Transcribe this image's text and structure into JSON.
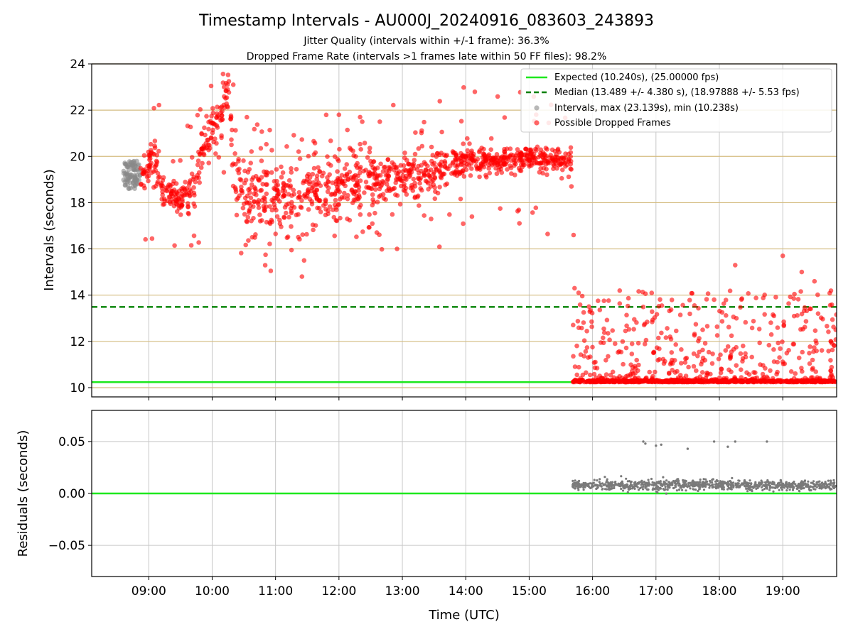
{
  "chart_data": {
    "type": "scatter",
    "title": "Timestamp Intervals - AU000J_20240916_083603_243893",
    "subtitle_lines": [
      "Jitter Quality (intervals within +/-1 frame): 36.3%",
      "Dropped Frame Rate (intervals >1 frames late within 50 FF files): 98.2%"
    ],
    "xlabel": "Time (UTC)",
    "x_ticks": [
      "09:00",
      "10:00",
      "11:00",
      "12:00",
      "13:00",
      "14:00",
      "15:00",
      "16:00",
      "17:00",
      "18:00",
      "19:00"
    ],
    "x_range": [
      "08:06",
      "19:51"
    ],
    "grid": true,
    "legend_position": "top-right",
    "colors": {
      "expected": "#1ee81e",
      "median": "#008000",
      "intervals": "#888888",
      "dropped": "#ff0000",
      "residuals": "#7a7a7a",
      "hgrid_top": "#d4bc80",
      "grid": "#c8c8c8"
    },
    "top": {
      "ylabel": "Intervals (seconds)",
      "ylim": [
        9.6,
        24
      ],
      "y_ticks": [
        10,
        12,
        14,
        16,
        18,
        20,
        22,
        24
      ],
      "expected_value": 10.24,
      "expected_start": "08:06",
      "expected_end": "15:41",
      "median_value": 13.489,
      "legend": [
        "Expected (10.240s), (25.00000 fps)",
        "Median (13.489 +/- 4.380 s), (18.97888 +/- 5.53 fps)",
        "Intervals, max (23.139s), min (10.238s)",
        "Possible Dropped Frames"
      ],
      "intervals_gray": [
        {
          "from": "08:36",
          "to": "08:52",
          "min": 18.6,
          "max": 19.8
        }
      ],
      "dropped_trend": [
        {
          "x": "08:52",
          "y": 19.2,
          "s": 0.4
        },
        {
          "x": "09:05",
          "y": 19.8,
          "s": 0.5
        },
        {
          "x": "09:15",
          "y": 18.4,
          "s": 0.3
        },
        {
          "x": "09:30",
          "y": 18.1,
          "s": 0.3
        },
        {
          "x": "09:45",
          "y": 18.7,
          "s": 0.4
        },
        {
          "x": "09:50",
          "y": 20.5,
          "s": 0.5
        },
        {
          "x": "10:00",
          "y": 21.0,
          "s": 0.5
        },
        {
          "x": "10:10",
          "y": 22.0,
          "s": 0.5
        },
        {
          "x": "10:17",
          "y": 22.8,
          "s": 0.4
        },
        {
          "x": "10:20",
          "y": 18.8,
          "s": 0.8
        },
        {
          "x": "10:40",
          "y": 18.2,
          "s": 0.8
        },
        {
          "x": "11:00",
          "y": 18.1,
          "s": 0.8
        },
        {
          "x": "11:20",
          "y": 18.0,
          "s": 0.9
        },
        {
          "x": "11:40",
          "y": 18.7,
          "s": 0.8
        },
        {
          "x": "12:00",
          "y": 18.6,
          "s": 0.8
        },
        {
          "x": "12:30",
          "y": 18.9,
          "s": 0.7
        },
        {
          "x": "13:00",
          "y": 19.1,
          "s": 0.6
        },
        {
          "x": "13:30",
          "y": 19.3,
          "s": 0.5
        },
        {
          "x": "14:00",
          "y": 19.8,
          "s": 0.3
        },
        {
          "x": "15:00",
          "y": 19.9,
          "s": 0.25
        },
        {
          "x": "15:40",
          "y": 19.8,
          "s": 0.3
        }
      ],
      "dropped_late": {
        "from": "15:41",
        "to": "19:51",
        "baseline": 10.24,
        "scatter_min": 10.4,
        "scatter_max": 14.2
      },
      "outliers": [
        {
          "x": "11:25",
          "y": 14.8
        },
        {
          "x": "11:27",
          "y": 15.5
        },
        {
          "x": "12:00",
          "y": 21.8
        },
        {
          "x": "12:20",
          "y": 21.7
        },
        {
          "x": "12:22",
          "y": 21.5
        },
        {
          "x": "12:55",
          "y": 16.0
        },
        {
          "x": "15:40",
          "y": 18.7
        },
        {
          "x": "15:42",
          "y": 16.6
        },
        {
          "x": "15:43",
          "y": 14.3
        },
        {
          "x": "18:15",
          "y": 15.3
        },
        {
          "x": "19:00",
          "y": 15.7
        },
        {
          "x": "19:18",
          "y": 15.0
        },
        {
          "x": "19:30",
          "y": 14.6
        },
        {
          "x": "10:20",
          "y": 23.1
        }
      ]
    },
    "bottom": {
      "ylabel": "Residuals (seconds)",
      "ylim": [
        -0.08,
        0.08
      ],
      "y_ticks": [
        0.05,
        0.0,
        -0.05
      ],
      "y_tick_labels": [
        "0.05",
        "0.00",
        "−0.05"
      ],
      "zero_line": 0.0,
      "residual_band": {
        "from": "15:41",
        "to": "19:51",
        "center": 0.008,
        "spread": 0.004
      },
      "residual_outliers": [
        {
          "x": "16:48",
          "y": 0.05
        },
        {
          "x": "16:50",
          "y": 0.048
        },
        {
          "x": "17:00",
          "y": 0.046
        },
        {
          "x": "17:05",
          "y": 0.047
        },
        {
          "x": "17:30",
          "y": 0.043
        },
        {
          "x": "17:55",
          "y": 0.05
        },
        {
          "x": "18:08",
          "y": 0.045
        },
        {
          "x": "18:15",
          "y": 0.05
        },
        {
          "x": "18:45",
          "y": 0.05
        }
      ]
    }
  }
}
